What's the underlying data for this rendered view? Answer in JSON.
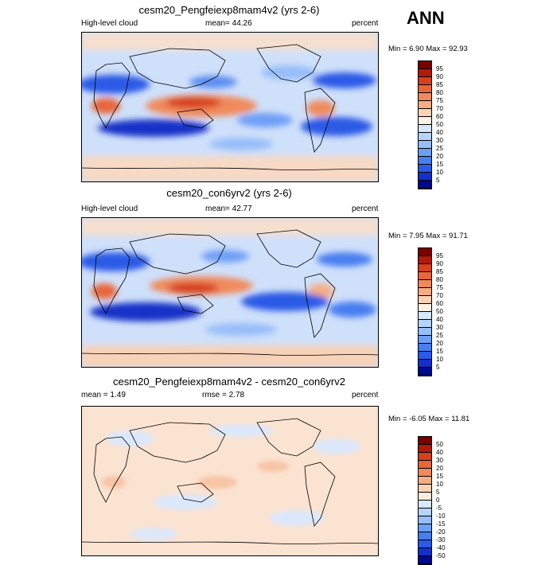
{
  "season": "ANN",
  "panels": [
    {
      "title": "cesm20_Pengfeiexp8mam4v2 (yrs 2-6)",
      "left_label": "High-level cloud",
      "stat": "mean=  44.26",
      "units": "percent",
      "minmax": "Min =   6.90 Max =  92.93",
      "levels": [
        "95",
        "90",
        "85",
        "80",
        "75",
        "70",
        "60",
        "50",
        "40",
        "30",
        "25",
        "20",
        "15",
        "10",
        "5"
      ],
      "colors": [
        "#7a0000",
        "#b01a0a",
        "#d6401c",
        "#e8663a",
        "#f08a5c",
        "#f6ad86",
        "#fad2b6",
        "#fdf0e4",
        "#d6e6fb",
        "#b6d3f9",
        "#96befa",
        "#6e9ff6",
        "#477ef0",
        "#2a5ae6",
        "#1530c8",
        "#000a8c"
      ]
    },
    {
      "title": "cesm20_con6yrv2 (yrs 2-6)",
      "left_label": "High-level cloud",
      "stat": "mean=  42.77",
      "units": "percent",
      "minmax": "Min =   7.95 Max =  91.71",
      "levels": [
        "95",
        "90",
        "85",
        "80",
        "75",
        "70",
        "60",
        "50",
        "40",
        "30",
        "25",
        "20",
        "15",
        "10",
        "5"
      ],
      "colors": [
        "#7a0000",
        "#b01a0a",
        "#d6401c",
        "#e8663a",
        "#f08a5c",
        "#f6ad86",
        "#fad2b6",
        "#fdf0e4",
        "#d6e6fb",
        "#b6d3f9",
        "#96befa",
        "#6e9ff6",
        "#477ef0",
        "#2a5ae6",
        "#1530c8",
        "#000a8c"
      ]
    },
    {
      "title": "cesm20_Pengfeiexp8mam4v2 - cesm20_con6yrv2",
      "left_label": "mean =   1.49",
      "stat": "rmse =   2.78",
      "units": "percent",
      "minmax": "Min =  -6.05 Max =  11.81",
      "levels": [
        "50",
        "40",
        "30",
        "20",
        "15",
        "10",
        "5",
        "0",
        "-5",
        "-10",
        "-15",
        "-20",
        "-30",
        "-40",
        "-50"
      ],
      "colors": [
        "#7a0000",
        "#b01a0a",
        "#d6401c",
        "#e8663a",
        "#f08a5c",
        "#f6ad86",
        "#fad2b6",
        "#fdebdc",
        "#dbe8fb",
        "#b6d3f9",
        "#96befa",
        "#6e9ff6",
        "#477ef0",
        "#2a5ae6",
        "#1530c8",
        "#000a8c"
      ]
    }
  ]
}
